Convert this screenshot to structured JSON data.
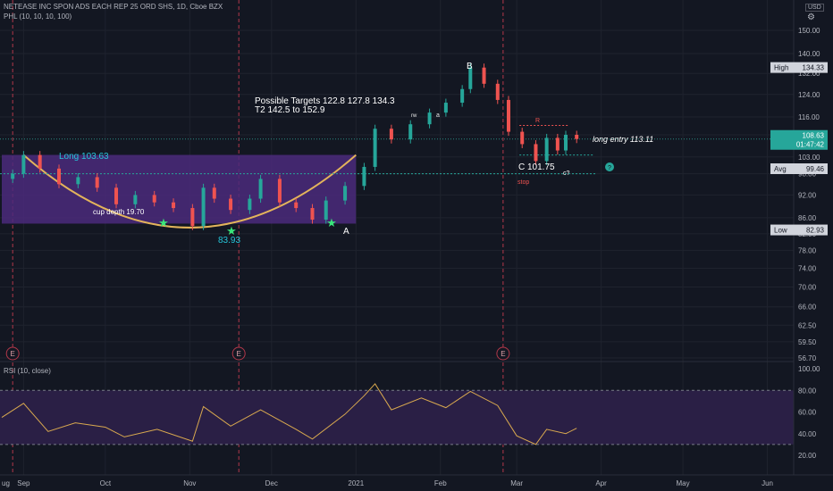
{
  "header": {
    "title": "NETEASE INC SPON ADS EACH REP 25 ORD SHS, 1D, Cboe BZX",
    "indicator": "PHL (10, 10, 10, 100)",
    "currency": "USD"
  },
  "rsi_header": "RSI (10, close)",
  "price_axis_ticks": [
    "150.00",
    "140.00",
    "132.00",
    "124.00",
    "116.00",
    "110.00",
    "103.00",
    "98.00",
    "92.00",
    "86.00",
    "82.00",
    "78.00",
    "74.00",
    "70.00",
    "66.00",
    "62.50",
    "59.50",
    "56.70"
  ],
  "rsi_axis_ticks": [
    "100.00",
    "80.00",
    "60.00",
    "40.00",
    "20.00"
  ],
  "time_axis_ticks": [
    "ug",
    "Sep",
    "Oct",
    "Nov",
    "Dec",
    "2021",
    "Feb",
    "Mar",
    "Apr",
    "May",
    "Jun"
  ],
  "price_labels": {
    "high": {
      "label": "High",
      "value": "134.33"
    },
    "last": {
      "value": "108.63",
      "countdown": "01:47:42"
    },
    "avg": {
      "label": "Avg",
      "value": "99.46"
    },
    "low": {
      "label": "Low",
      "value": "82.93"
    }
  },
  "annotations": {
    "long": "Long 103.63",
    "cup_depth": "cup depth 19.70",
    "low_point": "83.93",
    "targets_line1": "Possible Targets  122.8  127.8  134.3",
    "targets_line2": "T2  142.5 to 152.9",
    "point_a": "A",
    "point_b": "B",
    "point_c": "C 101.75",
    "c_question": "c?",
    "long_entry": "long entry 113.11",
    "stop": "stop",
    "r": "R",
    "rw": "rw",
    "a_small": "a",
    "earnings": [
      "E",
      "E",
      "E"
    ]
  },
  "colors": {
    "background": "#131722",
    "grid": "#1f232e",
    "up": "#26a69a",
    "down": "#ef5350",
    "cup_fill": "#4b2a7b",
    "cup_curve": "#e3b45b",
    "dotted_green": "#26a69a",
    "rsi_line": "#d9a94f",
    "rsi_band": "#2a1f45",
    "earnings_line": "#b2384a"
  },
  "chart_data": [
    {
      "type": "candlestick",
      "title": "NETEASE INC SPON ADS EACH REP 25 ORD SHS, 1D, Cboe BZX",
      "ylim": [
        54,
        160
      ],
      "x_range": [
        "2020-08-24",
        "2021-06-10"
      ],
      "high": 134.33,
      "low": 82.93,
      "avg": 99.46,
      "last": 108.63,
      "close_series": [
        {
          "date": "2020-08-24",
          "close": 96.5
        },
        {
          "date": "2020-08-28",
          "close": 98.0
        },
        {
          "date": "2020-09-01",
          "close": 103.6
        },
        {
          "date": "2020-09-07",
          "close": 99.5
        },
        {
          "date": "2020-09-14",
          "close": 95.0
        },
        {
          "date": "2020-09-21",
          "close": 97.0
        },
        {
          "date": "2020-09-28",
          "close": 94.0
        },
        {
          "date": "2020-10-05",
          "close": 89.5
        },
        {
          "date": "2020-10-12",
          "close": 92.0
        },
        {
          "date": "2020-10-19",
          "close": 90.0
        },
        {
          "date": "2020-10-26",
          "close": 88.5
        },
        {
          "date": "2020-11-02",
          "close": 83.9
        },
        {
          "date": "2020-11-06",
          "close": 94.0
        },
        {
          "date": "2020-11-10",
          "close": 91.0
        },
        {
          "date": "2020-11-16",
          "close": 88.0
        },
        {
          "date": "2020-11-23",
          "close": 91.0
        },
        {
          "date": "2020-11-27",
          "close": 96.5
        },
        {
          "date": "2020-12-04",
          "close": 90.0
        },
        {
          "date": "2020-12-10",
          "close": 88.5
        },
        {
          "date": "2020-12-16",
          "close": 85.5
        },
        {
          "date": "2020-12-21",
          "close": 90.5
        },
        {
          "date": "2020-12-28",
          "close": 94.5
        },
        {
          "date": "2021-01-04",
          "close": 100.0
        },
        {
          "date": "2021-01-08",
          "close": 112.0
        },
        {
          "date": "2021-01-14",
          "close": 108.5
        },
        {
          "date": "2021-01-21",
          "close": 113.5
        },
        {
          "date": "2021-01-28",
          "close": 117.5
        },
        {
          "date": "2021-02-03",
          "close": 121.0
        },
        {
          "date": "2021-02-09",
          "close": 126.0
        },
        {
          "date": "2021-02-12",
          "close": 134.3
        },
        {
          "date": "2021-02-17",
          "close": 128.0
        },
        {
          "date": "2021-02-22",
          "close": 122.0
        },
        {
          "date": "2021-02-26",
          "close": 111.0
        },
        {
          "date": "2021-03-03",
          "close": 107.0
        },
        {
          "date": "2021-03-08",
          "close": 101.75
        },
        {
          "date": "2021-03-12",
          "close": 109.0
        },
        {
          "date": "2021-03-16",
          "close": 105.0
        },
        {
          "date": "2021-03-19",
          "close": 110.0
        },
        {
          "date": "2021-03-23",
          "close": 108.63
        }
      ],
      "levels": {
        "long": 103.63,
        "long_entry": 113.11,
        "cup_low": 83.93,
        "c_point": 101.75,
        "cup_depth": 19.7
      },
      "targets": [
        122.8,
        127.8,
        134.3
      ],
      "target_range_t2": [
        142.5,
        152.9
      ]
    },
    {
      "type": "line",
      "title": "RSI (10, close)",
      "ylim": [
        12,
        104
      ],
      "bands": [
        30,
        80
      ],
      "values": [
        {
          "date": "2020-08-24",
          "rsi": 55
        },
        {
          "date": "2020-09-01",
          "rsi": 68
        },
        {
          "date": "2020-09-10",
          "rsi": 42
        },
        {
          "date": "2020-09-20",
          "rsi": 50
        },
        {
          "date": "2020-10-01",
          "rsi": 46
        },
        {
          "date": "2020-10-08",
          "rsi": 37
        },
        {
          "date": "2020-10-20",
          "rsi": 44
        },
        {
          "date": "2020-11-02",
          "rsi": 33
        },
        {
          "date": "2020-11-06",
          "rsi": 65
        },
        {
          "date": "2020-11-16",
          "rsi": 47
        },
        {
          "date": "2020-11-27",
          "rsi": 62
        },
        {
          "date": "2020-12-10",
          "rsi": 44
        },
        {
          "date": "2020-12-16",
          "rsi": 35
        },
        {
          "date": "2020-12-28",
          "rsi": 58
        },
        {
          "date": "2021-01-04",
          "rsi": 75
        },
        {
          "date": "2021-01-08",
          "rsi": 86
        },
        {
          "date": "2021-01-14",
          "rsi": 62
        },
        {
          "date": "2021-01-25",
          "rsi": 73
        },
        {
          "date": "2021-02-03",
          "rsi": 64
        },
        {
          "date": "2021-02-12",
          "rsi": 79
        },
        {
          "date": "2021-02-22",
          "rsi": 66
        },
        {
          "date": "2021-03-01",
          "rsi": 38
        },
        {
          "date": "2021-03-08",
          "rsi": 30
        },
        {
          "date": "2021-03-12",
          "rsi": 44
        },
        {
          "date": "2021-03-19",
          "rsi": 40
        },
        {
          "date": "2021-03-23",
          "rsi": 45
        }
      ]
    }
  ]
}
